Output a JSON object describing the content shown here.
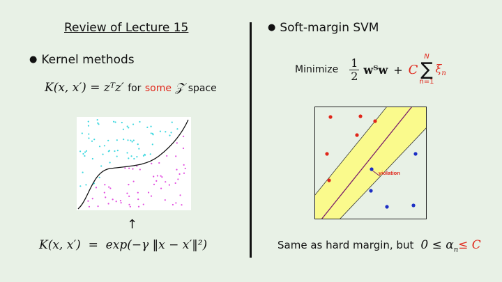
{
  "title": "Review of Lecture 15",
  "left": {
    "bullet": "Kernel methods",
    "kernel_formula": "K(x, x′) = zᵀz′",
    "for_text": "for",
    "some_text": "some",
    "z_space": "𝒵",
    "space_text": "space",
    "arrow": "↑",
    "rbf_formula": "K(x, x′)  =  exp(−γ ‖x − x′‖²)"
  },
  "right": {
    "bullet": "Soft-margin SVM",
    "minimize_label": "Minimize",
    "half_num": "1",
    "half_den": "2",
    "wtw": "wᵀw",
    "plus": "+",
    "C": "C",
    "sum_symbol": "∑",
    "sum_upper": "N",
    "sum_lower": "n=1",
    "xi": "ξ",
    "xi_sub": "n",
    "violation_label": "violation",
    "bottom_text": "Same as hard margin, but",
    "constraint": "0 ≤ α",
    "constraint_sub": "n",
    "constraint_end": "≤ C"
  },
  "colors": {
    "red": "#e0261a",
    "blue": "#1c2fc4",
    "band": "#fafa8c",
    "cyan": "#3ed8e0",
    "magenta": "#e24ee0"
  }
}
